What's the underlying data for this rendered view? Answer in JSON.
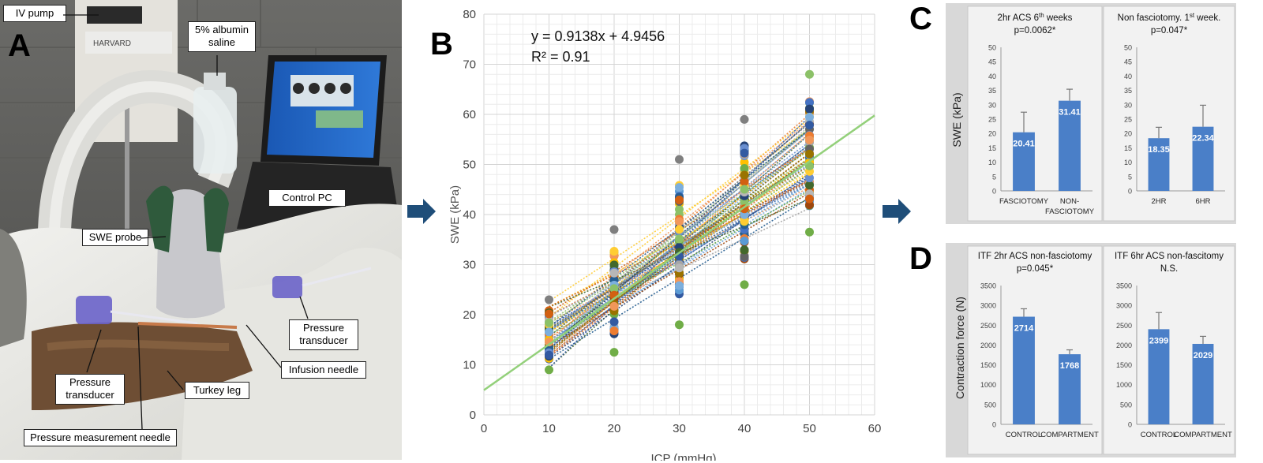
{
  "panelA": {
    "letter": "A",
    "labels": {
      "iv_pump": "IV pump",
      "albumin": "5% albumin saline",
      "control_pc": "Control PC",
      "swe_probe": "SWE probe",
      "pressure_transducer_right": "Pressure transducer",
      "infusion_needle": "Infusion needle",
      "pressure_transducer_left": "Pressure transducer",
      "turkey_leg": "Turkey leg",
      "pressure_needle": "Pressure measurement needle"
    },
    "equipment_text": "HARVARD"
  },
  "panelB": {
    "letter": "B",
    "equation": "y = 0.9138x + 4.9456",
    "r2": "R² = 0.91"
  },
  "panelC": {
    "letter": "C",
    "shared_ylabel": "SWE (kPa)"
  },
  "panelD": {
    "letter": "D",
    "shared_ylabel": "Contraction force (N)"
  },
  "colors": {
    "bar": "#4a7fc8",
    "trend": "#93d07a",
    "arrow": "#1f4e79"
  },
  "chart_data": [
    {
      "type": "scatter",
      "panel": "B",
      "title": "",
      "xlabel": "ICP (mmHg)",
      "ylabel": "SWE (kPa)",
      "xlim": [
        0,
        60
      ],
      "ylim": [
        0,
        80
      ],
      "xticks": [
        0,
        10,
        20,
        30,
        40,
        50,
        60
      ],
      "yticks": [
        0,
        10,
        20,
        30,
        40,
        50,
        60,
        70,
        80
      ],
      "grid": true,
      "x": [
        10,
        20,
        30,
        40,
        50
      ],
      "y_ranges": [
        [
          9,
          23
        ],
        [
          12.5,
          37
        ],
        [
          18,
          51
        ],
        [
          26,
          59
        ],
        [
          36.5,
          68
        ]
      ],
      "series_count": 60,
      "trendline": {
        "slope": 0.9138,
        "intercept": 4.9456,
        "r2": 0.91
      }
    },
    {
      "type": "bar",
      "panel": "C",
      "title": "2hr ACS 6th weeks p=0.0062*",
      "title_line1": "2hr ACS 6",
      "title_sup": "th",
      "title_line1_tail": " weeks",
      "title_line2": "p=0.0062*",
      "categories": [
        "FASCIOTOMY",
        "NON-FASCIOTOMY"
      ],
      "category_lines": [
        [
          "FASCIOTOMY"
        ],
        [
          "NON-",
          "FASCIOTOMY"
        ]
      ],
      "values": [
        20.41,
        31.41
      ],
      "value_labels": [
        "20.41",
        "31.41"
      ],
      "errors": [
        7,
        4
      ],
      "ylim": [
        0,
        50
      ],
      "yticks": [
        0,
        5,
        10,
        15,
        20,
        25,
        30,
        35,
        40,
        45,
        50
      ]
    },
    {
      "type": "bar",
      "panel": "C",
      "title": "Non fasciotomy. 1st week. p=0.047*",
      "title_line1": "Non fasciotomy. 1",
      "title_sup": "st",
      "title_line1_tail": " week.",
      "title_line2": "p=0.047*",
      "categories": [
        "2HR",
        "6HR"
      ],
      "category_lines": [
        [
          "2HR"
        ],
        [
          "6HR"
        ]
      ],
      "values": [
        18.35,
        22.34
      ],
      "value_labels": [
        "18.35",
        "22.34"
      ],
      "errors": [
        3.8,
        7.5
      ],
      "ylim": [
        0,
        50
      ],
      "yticks": [
        0,
        5,
        10,
        15,
        20,
        25,
        30,
        35,
        40,
        45,
        50
      ]
    },
    {
      "type": "bar",
      "panel": "D",
      "title": "ITF 2hr ACS non-fasciotomy p=0.045*",
      "title_line1": "ITF 2hr ACS non-fasciotomy",
      "title_sup": "",
      "title_line1_tail": "",
      "title_line2": "p=0.045*",
      "categories": [
        "CONTROL",
        "COMPARTMENT"
      ],
      "category_lines": [
        [
          "CONTROL"
        ],
        [
          "COMPARTMENT"
        ]
      ],
      "values": [
        2714,
        1768
      ],
      "value_labels": [
        "2714",
        "1768"
      ],
      "errors": [
        200,
        110
      ],
      "ylim": [
        0,
        3500
      ],
      "yticks": [
        0,
        500,
        1000,
        1500,
        2000,
        2500,
        3000,
        3500
      ]
    },
    {
      "type": "bar",
      "panel": "D",
      "title": "ITF 6hr ACS non-fascitomy N.S.",
      "title_line1": "ITF 6hr ACS non-fascitomy",
      "title_sup": "",
      "title_line1_tail": "",
      "title_line2": "N.S.",
      "categories": [
        "CONTROL",
        "COMPARTMENT"
      ],
      "category_lines": [
        [
          "CONTROL"
        ],
        [
          "COMPARTMENT"
        ]
      ],
      "values": [
        2399,
        2029
      ],
      "value_labels": [
        "2399",
        "2029"
      ],
      "errors": [
        420,
        190
      ],
      "ylim": [
        0,
        3500
      ],
      "yticks": [
        0,
        500,
        1000,
        1500,
        2000,
        2500,
        3000,
        3500
      ]
    }
  ]
}
